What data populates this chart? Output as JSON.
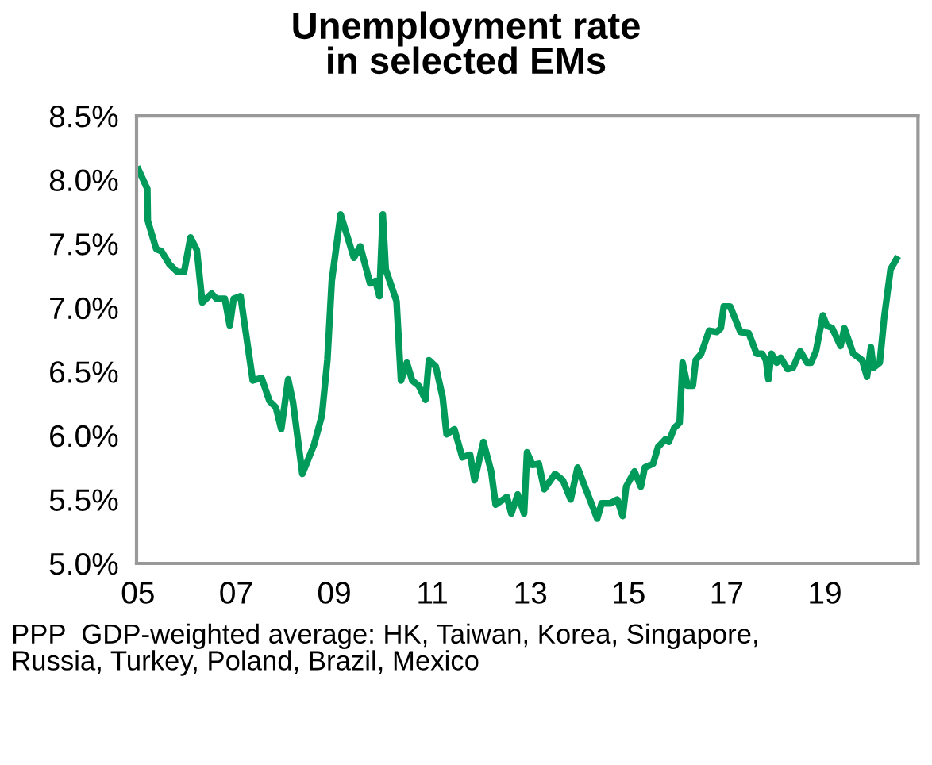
{
  "chart_data": {
    "type": "line",
    "title": "Unemployment rate\nin selected EMs",
    "x": [
      2005.01,
      2005.19,
      2005.2,
      2005.37,
      2005.48,
      2005.64,
      2005.8,
      2005.94,
      2006.07,
      2006.2,
      2006.31,
      2006.5,
      2006.6,
      2006.77,
      2006.87,
      2006.95,
      2007.09,
      2007.34,
      2007.52,
      2007.68,
      2007.81,
      2007.92,
      2008.06,
      2008.16,
      2008.35,
      2008.59,
      2008.75,
      2008.86,
      2008.95,
      2009.13,
      2009.4,
      2009.53,
      2009.73,
      2009.84,
      2009.92,
      2009.99,
      2010.05,
      2010.27,
      2010.36,
      2010.48,
      2010.59,
      2010.72,
      2010.86,
      2010.93,
      2011.07,
      2011.21,
      2011.29,
      2011.45,
      2011.61,
      2011.77,
      2011.86,
      2012.04,
      2012.2,
      2012.29,
      2012.52,
      2012.61,
      2012.74,
      2012.87,
      2012.93,
      2013.04,
      2013.17,
      2013.28,
      2013.5,
      2013.66,
      2013.82,
      2013.96,
      2014.15,
      2014.36,
      2014.45,
      2014.63,
      2014.77,
      2014.88,
      2014.95,
      2015.12,
      2015.25,
      2015.33,
      2015.5,
      2015.6,
      2015.75,
      2015.82,
      2015.93,
      2016.04,
      2016.1,
      2016.2,
      2016.31,
      2016.37,
      2016.48,
      2016.64,
      2016.8,
      2016.88,
      2016.94,
      2017.07,
      2017.28,
      2017.45,
      2017.61,
      2017.72,
      2017.8,
      2017.85,
      2017.91,
      2018.02,
      2018.1,
      2018.24,
      2018.35,
      2018.5,
      2018.64,
      2018.72,
      2018.82,
      2018.96,
      2019.04,
      2019.15,
      2019.32,
      2019.4,
      2019.58,
      2019.76,
      2019.86,
      2019.94,
      2019.99,
      2020.12,
      2020.21,
      2020.34,
      2020.46
    ],
    "series": [
      {
        "color": "#009a5a",
        "values": [
          8.08,
          7.93,
          7.68,
          7.46,
          7.44,
          7.34,
          7.28,
          7.28,
          7.55,
          7.45,
          7.04,
          7.11,
          7.07,
          7.07,
          6.86,
          7.07,
          7.09,
          6.43,
          6.45,
          6.27,
          6.22,
          6.05,
          6.44,
          6.26,
          5.7,
          5.93,
          6.16,
          6.59,
          7.21,
          7.73,
          7.39,
          7.48,
          7.19,
          7.21,
          7.09,
          7.73,
          7.3,
          7.05,
          6.43,
          6.57,
          6.43,
          6.39,
          6.28,
          6.59,
          6.54,
          6.3,
          6.01,
          6.05,
          5.83,
          5.85,
          5.65,
          5.95,
          5.72,
          5.46,
          5.52,
          5.39,
          5.54,
          5.39,
          5.87,
          5.77,
          5.78,
          5.58,
          5.7,
          5.65,
          5.5,
          5.75,
          5.56,
          5.35,
          5.47,
          5.47,
          5.5,
          5.37,
          5.6,
          5.72,
          5.6,
          5.75,
          5.78,
          5.91,
          5.97,
          5.95,
          6.06,
          6.1,
          6.57,
          6.39,
          6.39,
          6.59,
          6.64,
          6.82,
          6.81,
          6.84,
          7.01,
          7.01,
          6.81,
          6.8,
          6.64,
          6.64,
          6.59,
          6.44,
          6.64,
          6.57,
          6.61,
          6.52,
          6.53,
          6.66,
          6.57,
          6.57,
          6.66,
          6.94,
          6.86,
          6.84,
          6.7,
          6.84,
          6.64,
          6.59,
          6.46,
          6.69,
          6.53,
          6.57,
          6.92,
          7.3,
          7.38
        ]
      }
    ],
    "xlim": [
      2004.97,
      2020.9
    ],
    "xticks": [
      {
        "value": 2005,
        "label": "05"
      },
      {
        "value": 2007,
        "label": "07"
      },
      {
        "value": 2009,
        "label": "09"
      },
      {
        "value": 2011,
        "label": "11"
      },
      {
        "value": 2013,
        "label": "13"
      },
      {
        "value": 2015,
        "label": "15"
      },
      {
        "value": 2017,
        "label": "17"
      },
      {
        "value": 2019,
        "label": "19"
      }
    ],
    "ylim": [
      5.0,
      8.5
    ],
    "yticks": [
      {
        "value": 5.0,
        "label": "5.0%"
      },
      {
        "value": 5.5,
        "label": "5.5%"
      },
      {
        "value": 6.0,
        "label": "6.0%"
      },
      {
        "value": 6.5,
        "label": "6.5%"
      },
      {
        "value": 7.0,
        "label": "7.0%"
      },
      {
        "value": 7.5,
        "label": "7.5%"
      },
      {
        "value": 8.0,
        "label": "8.0%"
      },
      {
        "value": 8.5,
        "label": "8.5%"
      }
    ],
    "grid": false,
    "marker": "none",
    "line_style": "solid",
    "annotations": [
      "PPP  GDP-weighted average: HK, Taiwan, Korea, Singapore,\nRussia, Turkey, Poland, Brazil, Mexico"
    ]
  }
}
